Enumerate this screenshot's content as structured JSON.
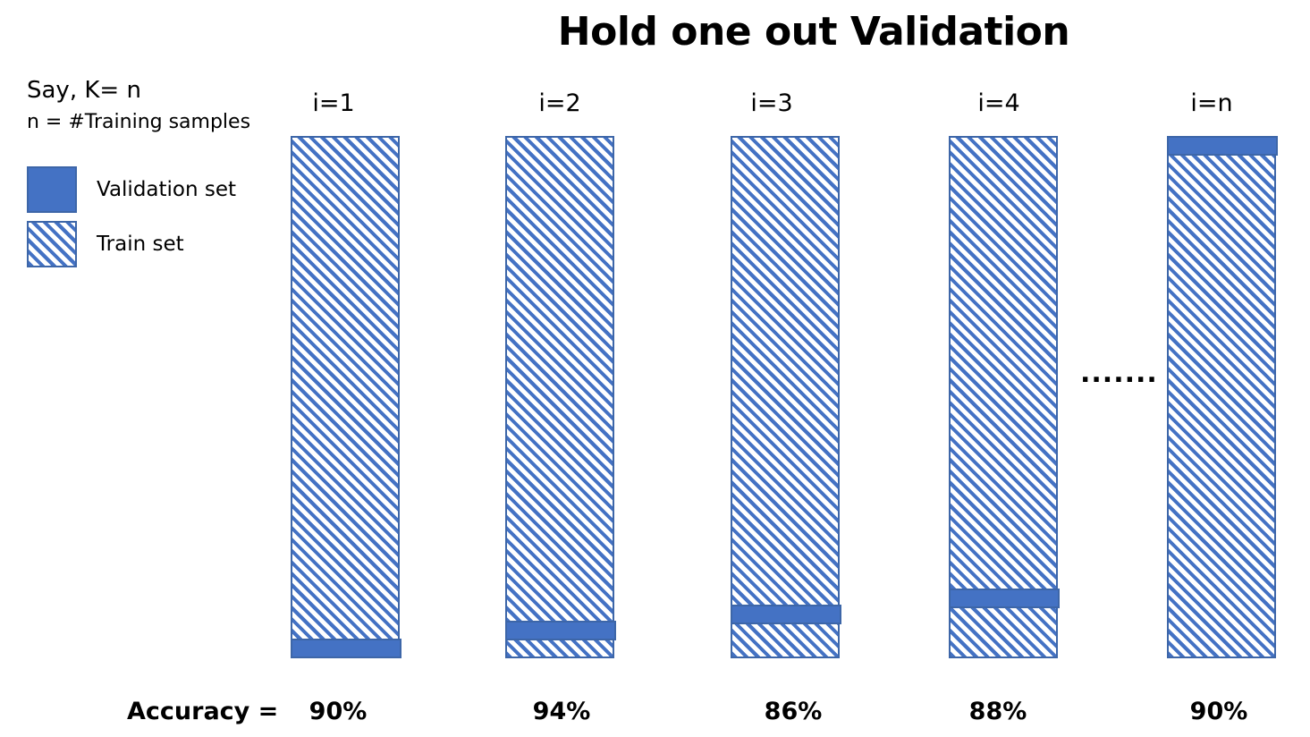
{
  "title": "Hold one out Validation",
  "notes": {
    "line1": "Say, K= n",
    "line2": "n = #Training samples"
  },
  "legend": [
    {
      "label": "Validation set",
      "style": "solid"
    },
    {
      "label": "Train set",
      "style": "hatched"
    }
  ],
  "colors": {
    "fill": "#4472C4",
    "border": "#3D66A8"
  },
  "folds": [
    {
      "label": "i=1",
      "accuracy": "90%"
    },
    {
      "label": "i=2",
      "accuracy": "94%"
    },
    {
      "label": "i=3",
      "accuracy": "86%"
    },
    {
      "label": "i=4",
      "accuracy": "88%"
    },
    {
      "label": "i=n",
      "accuracy": "90%"
    }
  ],
  "ellipsis": ".......",
  "accuracy_label": "Accuracy ="
}
